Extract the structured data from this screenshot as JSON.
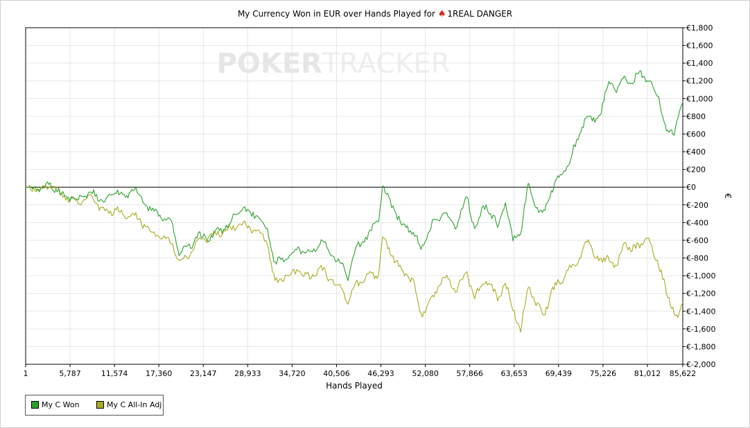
{
  "title_text": "My Currency Won in EUR over Hands Played for",
  "title_player": "1REAL DANGER",
  "watermark": {
    "part1": "POKER",
    "part2": "TRACKER"
  },
  "chart_data": {
    "type": "line",
    "title": "My Currency Won in EUR over Hands Played for 1REAL DANGER",
    "xlabel": "Hands Played",
    "ylabel": "€",
    "xlim": [
      1,
      85622
    ],
    "ylim": [
      -2000,
      1800
    ],
    "x_ticks": [
      1,
      5787,
      11574,
      17360,
      23147,
      28933,
      34720,
      40506,
      46293,
      52080,
      57866,
      63653,
      69439,
      75226,
      81012,
      85622
    ],
    "x_tick_labels": [
      "1",
      "5,787",
      "11,574",
      "17,360",
      "23,147",
      "28,933",
      "34,720",
      "40,506",
      "46,293",
      "52,080",
      "57,866",
      "63,653",
      "69,439",
      "75,226",
      "81,012",
      "85,622"
    ],
    "y_ticks": [
      1800,
      1600,
      1400,
      1200,
      1000,
      800,
      600,
      400,
      200,
      0,
      -200,
      -400,
      -600,
      -800,
      -1000,
      -1200,
      -1400,
      -1600,
      -1800,
      -2000
    ],
    "y_tick_labels": [
      "€1,800",
      "€1,600",
      "€1,400",
      "€1,200",
      "€1,000",
      "€800",
      "€600",
      "€400",
      "€200",
      "€0",
      "€-200",
      "€-400",
      "€-600",
      "€-800",
      "€-1,000",
      "€-1,200",
      "€-1,400",
      "€-1,600",
      "€-1,800",
      "€-2,000"
    ],
    "grid": true,
    "legend_position": "bottom-left",
    "series": [
      {
        "name": "My C Won",
        "color": "#2ca02c",
        "x": [
          1,
          2300,
          3200,
          4500,
          6500,
          8500,
          10500,
          11800,
          13000,
          14000,
          16000,
          17500,
          19000,
          20000,
          21500,
          22500,
          24000,
          26500,
          28000,
          30000,
          31500,
          32500,
          34000,
          35500,
          37000,
          38500,
          40000,
          41500,
          42000,
          43000,
          44500,
          46000,
          46500,
          47500,
          49000,
          50500,
          51500,
          53000,
          54500,
          56000,
          57500,
          58500,
          60000,
          61500,
          62500,
          63500,
          64500,
          65500,
          66500,
          67500,
          68500,
          69500,
          70500,
          72000,
          73000,
          74000,
          75000,
          76000,
          77000,
          78000,
          79000,
          80000,
          81000,
          82500,
          83500,
          84500,
          85000,
          85622
        ],
        "y": [
          0,
          -20,
          30,
          -80,
          -140,
          -60,
          -170,
          -20,
          -150,
          0,
          -240,
          -320,
          -380,
          -760,
          -650,
          -560,
          -560,
          -420,
          -240,
          -310,
          -480,
          -870,
          -800,
          -690,
          -760,
          -600,
          -780,
          -900,
          -1020,
          -700,
          -560,
          -350,
          20,
          -160,
          -420,
          -500,
          -700,
          -420,
          -280,
          -440,
          -120,
          -460,
          -180,
          -450,
          -180,
          -600,
          -500,
          20,
          -220,
          -310,
          -50,
          120,
          220,
          540,
          800,
          760,
          850,
          1200,
          1100,
          1260,
          1150,
          1320,
          1200,
          1040,
          600,
          640,
          800,
          960
        ]
      },
      {
        "name": "My C All-In Adj",
        "color": "#aaaa22",
        "x": [
          1,
          2300,
          3200,
          4500,
          6500,
          8500,
          10500,
          11800,
          13000,
          14000,
          16000,
          17500,
          19000,
          20000,
          21500,
          22500,
          24000,
          26500,
          28000,
          30000,
          31500,
          32500,
          34000,
          35500,
          37000,
          38500,
          40000,
          41500,
          42000,
          43000,
          44500,
          46000,
          46500,
          47500,
          49000,
          50500,
          51500,
          53000,
          54500,
          56000,
          57500,
          58500,
          60000,
          61500,
          62500,
          63500,
          64500,
          65500,
          66500,
          67500,
          68500,
          69500,
          70500,
          72000,
          73000,
          74000,
          75000,
          76000,
          77000,
          78000,
          79000,
          80000,
          81000,
          82500,
          83500,
          84500,
          85000,
          85622
        ],
        "y": [
          0,
          -20,
          20,
          -90,
          -170,
          -120,
          -300,
          -250,
          -350,
          -300,
          -480,
          -560,
          -620,
          -830,
          -760,
          -600,
          -560,
          -480,
          -420,
          -480,
          -620,
          -1080,
          -1000,
          -940,
          -1020,
          -920,
          -1060,
          -1180,
          -1320,
          -1100,
          -1020,
          -980,
          -600,
          -720,
          -960,
          -1040,
          -1440,
          -1260,
          -1000,
          -1160,
          -980,
          -1240,
          -1040,
          -1260,
          -1080,
          -1380,
          -1600,
          -1120,
          -1300,
          -1460,
          -1180,
          -1080,
          -960,
          -840,
          -600,
          -720,
          -860,
          -780,
          -920,
          -600,
          -720,
          -640,
          -580,
          -860,
          -1200,
          -1380,
          -1480,
          -1300
        ]
      }
    ]
  },
  "legend": {
    "items": [
      {
        "label": "My C Won",
        "color": "#2ca02c"
      },
      {
        "label": "My C All-In Adj",
        "color": "#aaaa22"
      }
    ]
  }
}
